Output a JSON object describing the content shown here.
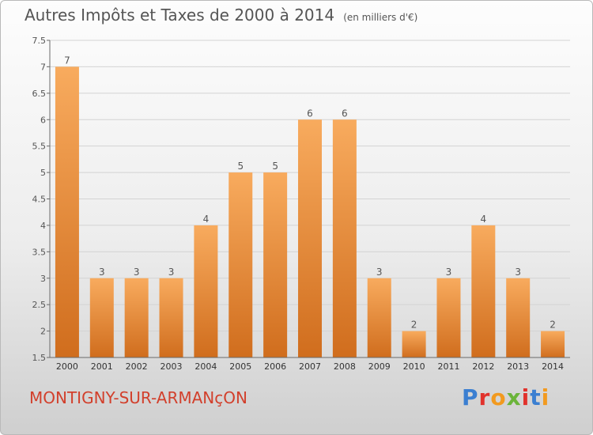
{
  "title": "Autres Impôts et Taxes de 2000 à 2014",
  "unit": "(en milliers d'€)",
  "city": "MONTIGNY-SUR-ARMANçON",
  "logo": {
    "text": "Proxiti",
    "letter_colors": [
      "#3b7fd1",
      "#e1322c",
      "#f29a1f",
      "#6bb43a",
      "#e1322c",
      "#3b7fd1",
      "#f29a1f"
    ]
  },
  "colors": {
    "bar_top": "#f8ab5e",
    "bar_bottom": "#d06d1d",
    "grid": "#d3d3d3",
    "axis": "#6a6a6a",
    "text": "#555555"
  },
  "chart_data": {
    "type": "bar",
    "categories": [
      "2000",
      "2001",
      "2002",
      "2003",
      "2004",
      "2005",
      "2006",
      "2007",
      "2008",
      "2009",
      "2010",
      "2011",
      "2012",
      "2013",
      "2014"
    ],
    "values": [
      7,
      3,
      3,
      3,
      4,
      5,
      5,
      6,
      6,
      3,
      2,
      3,
      4,
      3,
      2
    ],
    "ylim": [
      1.5,
      7.5
    ],
    "yticks": [
      "1.5",
      "2",
      "2.5",
      "3",
      "3.5",
      "4",
      "4.5",
      "5",
      "5.5",
      "6",
      "6.5",
      "7",
      "7.5"
    ],
    "grid": true
  }
}
